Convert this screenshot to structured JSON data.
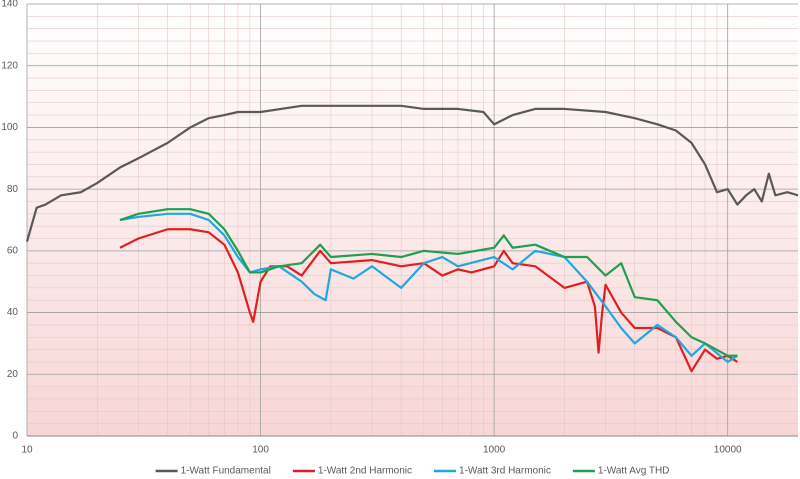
{
  "chart_data": {
    "type": "line",
    "log_x": true,
    "grid": true,
    "legend": "bottom",
    "xlim": [
      10,
      20000
    ],
    "xticks": [
      10,
      100,
      1000,
      10000
    ],
    "ylim": [
      0,
      140
    ],
    "yticks": [
      0,
      20,
      40,
      60,
      80,
      100,
      120,
      140
    ],
    "series": [
      {
        "name": "1-Watt Fundamental",
        "color": "#595959",
        "x": [
          10,
          11,
          12,
          14,
          17,
          20,
          25,
          30,
          40,
          50,
          60,
          70,
          80,
          100,
          150,
          200,
          300,
          400,
          500,
          700,
          900,
          1000,
          1200,
          1500,
          2000,
          3000,
          4000,
          5000,
          6000,
          7000,
          8000,
          9000,
          10000,
          11000,
          12000,
          13000,
          14000,
          15000,
          16000,
          18000,
          20000
        ],
        "values": [
          63,
          74,
          75,
          78,
          79,
          82,
          87,
          90,
          95,
          100,
          103,
          104,
          105,
          105,
          107,
          107,
          107,
          107,
          106,
          106,
          105,
          101,
          104,
          106,
          106,
          105,
          103,
          101,
          99,
          95,
          88,
          79,
          80,
          75,
          78,
          80,
          76,
          85,
          78,
          79,
          78
        ]
      },
      {
        "name": "1-Watt 2nd Harmonic",
        "color": "#e02020",
        "x": [
          25,
          30,
          40,
          50,
          60,
          70,
          80,
          90,
          93,
          100,
          110,
          130,
          150,
          180,
          200,
          300,
          400,
          500,
          600,
          700,
          800,
          1000,
          1100,
          1200,
          1500,
          2000,
          2500,
          2700,
          2800,
          2900,
          3000,
          3500,
          4000,
          5000,
          6000,
          7000,
          8000,
          9000,
          10000,
          11000
        ],
        "values": [
          61,
          64,
          67,
          67,
          66,
          62,
          53,
          40,
          37,
          50,
          55,
          55,
          52,
          60,
          56,
          57,
          55,
          56,
          52,
          54,
          53,
          55,
          60,
          56,
          55,
          48,
          50,
          42,
          27,
          40,
          49,
          40,
          35,
          35,
          32,
          21,
          28,
          25,
          26,
          24
        ]
      },
      {
        "name": "1-Watt 3rd Harmonic",
        "color": "#1fa8e0",
        "x": [
          25,
          30,
          40,
          50,
          60,
          70,
          80,
          90,
          100,
          120,
          150,
          170,
          190,
          200,
          250,
          300,
          400,
          500,
          600,
          700,
          1000,
          1200,
          1500,
          2000,
          2500,
          3000,
          3500,
          4000,
          5000,
          6000,
          7000,
          8000,
          10000,
          11000
        ],
        "values": [
          70,
          71,
          72,
          72,
          70,
          65,
          58,
          53,
          54,
          55,
          50,
          46,
          44,
          54,
          51,
          55,
          48,
          56,
          58,
          55,
          58,
          54,
          60,
          58,
          50,
          42,
          35,
          30,
          36,
          32,
          26,
          30,
          24,
          26
        ]
      },
      {
        "name": "1-Watt Avg THD",
        "color": "#1fa050",
        "x": [
          25,
          30,
          40,
          50,
          60,
          70,
          80,
          90,
          100,
          120,
          150,
          180,
          200,
          300,
          400,
          500,
          700,
          1000,
          1100,
          1200,
          1500,
          2000,
          2500,
          3000,
          3500,
          4000,
          5000,
          6000,
          7000,
          8000,
          10000,
          11000
        ],
        "values": [
          70,
          72,
          73.5,
          73.5,
          72,
          67,
          60,
          53,
          53,
          55,
          56,
          62,
          58,
          59,
          58,
          60,
          59,
          61,
          65,
          61,
          62,
          58,
          58,
          52,
          56,
          45,
          44,
          37,
          32,
          30,
          26,
          26
        ]
      }
    ]
  }
}
